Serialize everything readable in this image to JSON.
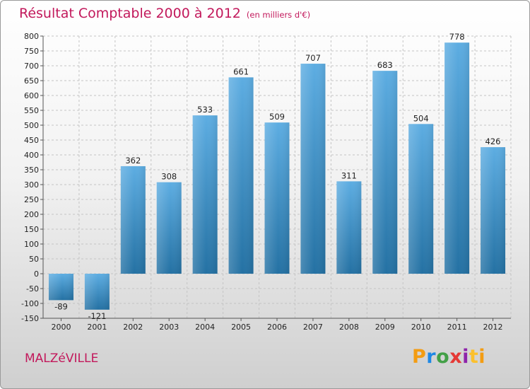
{
  "title": "Résultat Comptable 2000 à 2012",
  "subtitle": "(en milliers d'€)",
  "commune": "MALZéVILLE",
  "logo": "Proxiti",
  "colors": {
    "title": "#c2185b",
    "bar_top": "#5dade2",
    "bar_bottom": "#2471a3",
    "grid": "#c4c4c4"
  },
  "chart_data": {
    "type": "bar",
    "title": "Résultat Comptable 2000 à 2012",
    "subtitle": "(en milliers d'€)",
    "xlabel": "",
    "ylabel": "",
    "categories": [
      "2000",
      "2001",
      "2002",
      "2003",
      "2004",
      "2005",
      "2006",
      "2007",
      "2008",
      "2009",
      "2010",
      "2011",
      "2012"
    ],
    "values": [
      -89,
      -121,
      362,
      308,
      533,
      661,
      509,
      707,
      311,
      683,
      504,
      778,
      426
    ],
    "data_labels": [
      "-89",
      "-121",
      "362",
      "308",
      "533",
      "661",
      "509",
      "707",
      "311",
      "683",
      "504",
      "778",
      "426"
    ],
    "ylim": [
      -150,
      800
    ],
    "yticks": [
      -150,
      -100,
      -50,
      0,
      50,
      100,
      150,
      200,
      250,
      300,
      350,
      400,
      450,
      500,
      550,
      600,
      650,
      700,
      750,
      800
    ],
    "grid": true
  }
}
